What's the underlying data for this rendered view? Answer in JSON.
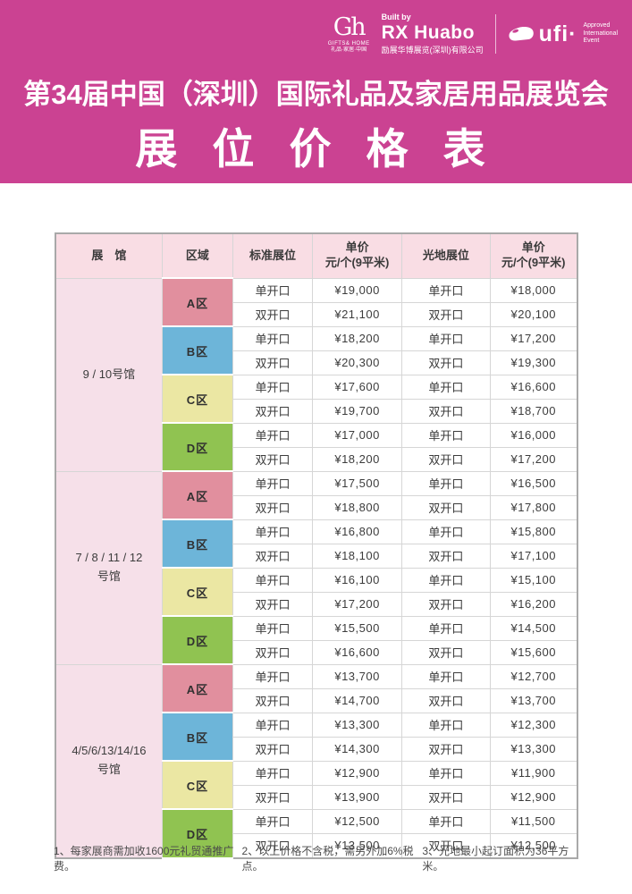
{
  "colors": {
    "band_pink": "#cb4292",
    "header_row_bg": "#f9dde4",
    "hall_col_bg": "#f6e0e9",
    "zone_a": "#e18f9e",
    "zone_b": "#6db5d9",
    "zone_c": "#ebe7a3",
    "zone_d": "#90c351"
  },
  "header": {
    "gh_logo": {
      "monogram": "Gh",
      "subtext": "GIFTS& HOME",
      "tagline": "礼品·家居·中国"
    },
    "built_by": {
      "label": "Built by",
      "brand": "RX Huabo",
      "company": "励展华博展览(深圳)有限公司"
    },
    "ufi": {
      "brand": "ufi·",
      "lines": [
        "Approved",
        "International",
        "Event"
      ]
    }
  },
  "title": {
    "line1": "第34届中国（深圳）国际礼品及家居用品展览会",
    "line2": "展 位 价 格 表"
  },
  "table": {
    "columns": [
      {
        "line1": "展　馆"
      },
      {
        "line1": "区域"
      },
      {
        "line1": "标准展位"
      },
      {
        "line1": "单价",
        "line2": "元/个(9平米)"
      },
      {
        "line1": "光地展位"
      },
      {
        "line1": "单价",
        "line2": "元/个(9平米)"
      }
    ],
    "halls": [
      {
        "name_lines": [
          "9 / 10号馆"
        ],
        "zones": [
          {
            "label": "A区",
            "color": "#e18f9e",
            "rows": [
              {
                "booth": "单开口",
                "std_price": "¥19,000",
                "open_booth": "单开口",
                "open_price": "¥18,000"
              },
              {
                "booth": "双开口",
                "std_price": "¥21,100",
                "open_booth": "双开口",
                "open_price": "¥20,100"
              }
            ]
          },
          {
            "label": "B区",
            "color": "#6db5d9",
            "rows": [
              {
                "booth": "单开口",
                "std_price": "¥18,200",
                "open_booth": "单开口",
                "open_price": "¥17,200"
              },
              {
                "booth": "双开口",
                "std_price": "¥20,300",
                "open_booth": "双开口",
                "open_price": "¥19,300"
              }
            ]
          },
          {
            "label": "C区",
            "color": "#ebe7a3",
            "rows": [
              {
                "booth": "单开口",
                "std_price": "¥17,600",
                "open_booth": "单开口",
                "open_price": "¥16,600"
              },
              {
                "booth": "双开口",
                "std_price": "¥19,700",
                "open_booth": "双开口",
                "open_price": "¥18,700"
              }
            ]
          },
          {
            "label": "D区",
            "color": "#90c351",
            "rows": [
              {
                "booth": "单开口",
                "std_price": "¥17,000",
                "open_booth": "单开口",
                "open_price": "¥16,000"
              },
              {
                "booth": "双开口",
                "std_price": "¥18,200",
                "open_booth": "双开口",
                "open_price": "¥17,200"
              }
            ]
          }
        ]
      },
      {
        "name_lines": [
          "7 / 8 / 11 / 12",
          "号馆"
        ],
        "zones": [
          {
            "label": "A区",
            "color": "#e18f9e",
            "rows": [
              {
                "booth": "单开口",
                "std_price": "¥17,500",
                "open_booth": "单开口",
                "open_price": "¥16,500"
              },
              {
                "booth": "双开口",
                "std_price": "¥18,800",
                "open_booth": "双开口",
                "open_price": "¥17,800"
              }
            ]
          },
          {
            "label": "B区",
            "color": "#6db5d9",
            "rows": [
              {
                "booth": "单开口",
                "std_price": "¥16,800",
                "open_booth": "单开口",
                "open_price": "¥15,800"
              },
              {
                "booth": "双开口",
                "std_price": "¥18,100",
                "open_booth": "双开口",
                "open_price": "¥17,100"
              }
            ]
          },
          {
            "label": "C区",
            "color": "#ebe7a3",
            "rows": [
              {
                "booth": "单开口",
                "std_price": "¥16,100",
                "open_booth": "单开口",
                "open_price": "¥15,100"
              },
              {
                "booth": "双开口",
                "std_price": "¥17,200",
                "open_booth": "双开口",
                "open_price": "¥16,200"
              }
            ]
          },
          {
            "label": "D区",
            "color": "#90c351",
            "rows": [
              {
                "booth": "单开口",
                "std_price": "¥15,500",
                "open_booth": "单开口",
                "open_price": "¥14,500"
              },
              {
                "booth": "双开口",
                "std_price": "¥16,600",
                "open_booth": "双开口",
                "open_price": "¥15,600"
              }
            ]
          }
        ]
      },
      {
        "name_lines": [
          "4/5/6/13/14/16",
          "号馆"
        ],
        "zones": [
          {
            "label": "A区",
            "color": "#e18f9e",
            "rows": [
              {
                "booth": "单开口",
                "std_price": "¥13,700",
                "open_booth": "单开口",
                "open_price": "¥12,700"
              },
              {
                "booth": "双开口",
                "std_price": "¥14,700",
                "open_booth": "双开口",
                "open_price": "¥13,700"
              }
            ]
          },
          {
            "label": "B区",
            "color": "#6db5d9",
            "rows": [
              {
                "booth": "单开口",
                "std_price": "¥13,300",
                "open_booth": "单开口",
                "open_price": "¥12,300"
              },
              {
                "booth": "双开口",
                "std_price": "¥14,300",
                "open_booth": "双开口",
                "open_price": "¥13,300"
              }
            ]
          },
          {
            "label": "C区",
            "color": "#ebe7a3",
            "rows": [
              {
                "booth": "单开口",
                "std_price": "¥12,900",
                "open_booth": "单开口",
                "open_price": "¥11,900"
              },
              {
                "booth": "双开口",
                "std_price": "¥13,900",
                "open_booth": "双开口",
                "open_price": "¥12,900"
              }
            ]
          },
          {
            "label": "D区",
            "color": "#90c351",
            "rows": [
              {
                "booth": "单开口",
                "std_price": "¥12,500",
                "open_booth": "单开口",
                "open_price": "¥11,500"
              },
              {
                "booth": "双开口",
                "std_price": "¥13,500",
                "open_booth": "双开口",
                "open_price": "¥12,500"
              }
            ]
          }
        ]
      }
    ]
  },
  "notes": [
    "1、每家展商需加收1600元礼贸通推广费。",
    "2、以上价格不含税，需另外加6%税点。",
    "3、光地最小起订面积为36平方米。"
  ]
}
